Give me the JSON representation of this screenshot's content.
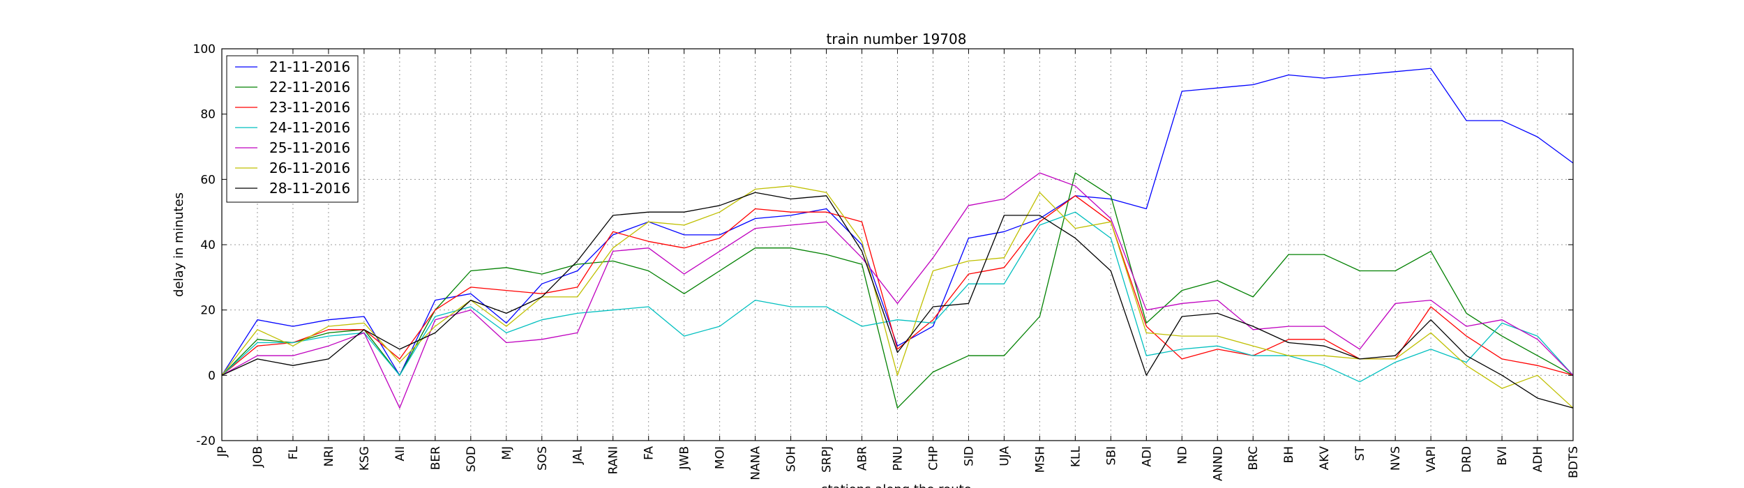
{
  "chart_data": {
    "type": "line",
    "title": "train number 19708",
    "xlabel": "stations along the route",
    "ylabel": "delay in minutes",
    "ylim": [
      -20,
      100
    ],
    "yticks": [
      -20,
      0,
      20,
      40,
      60,
      80,
      100
    ],
    "grid": true,
    "legend_position": "top-left",
    "categories": [
      "JP",
      "JOB",
      "FL",
      "NRI",
      "KSG",
      "AII",
      "BER",
      "SOD",
      "MJ",
      "SOS",
      "JAL",
      "RANI",
      "FA",
      "JWB",
      "MOI",
      "NANA",
      "SOH",
      "SRPJ",
      "ABR",
      "PNU",
      "CHP",
      "SID",
      "UJA",
      "MSH",
      "KLL",
      "SBI",
      "ADI",
      "ND",
      "ANND",
      "BRC",
      "BH",
      "AKV",
      "ST",
      "NVS",
      "VAPI",
      "DRD",
      "BVI",
      "ADH",
      "BDTS"
    ],
    "series": [
      {
        "name": "21-11-2016",
        "color": "#0000ff",
        "values": [
          0,
          17,
          15,
          17,
          18,
          0,
          23,
          25,
          16,
          28,
          32,
          43,
          47,
          43,
          43,
          48,
          49,
          51,
          40,
          9,
          15,
          42,
          44,
          48,
          55,
          54,
          51,
          87,
          88,
          89,
          92,
          91,
          92,
          93,
          94,
          78,
          78,
          73,
          65
        ]
      },
      {
        "name": "22-11-2016",
        "color": "#008000",
        "values": [
          0,
          11,
          10,
          13,
          14,
          0,
          20,
          32,
          33,
          31,
          34,
          35,
          32,
          25,
          32,
          39,
          39,
          37,
          34,
          -10,
          1,
          6,
          6,
          18,
          62,
          55,
          16,
          26,
          29,
          24,
          37,
          37,
          32,
          32,
          38,
          19,
          12,
          6,
          0
        ]
      },
      {
        "name": "23-11-2016",
        "color": "#ff0000",
        "values": [
          0,
          9,
          10,
          14,
          14,
          5,
          20,
          27,
          26,
          25,
          27,
          44,
          41,
          39,
          42,
          51,
          50,
          50,
          47,
          8,
          17,
          31,
          33,
          47,
          55,
          47,
          15,
          5,
          8,
          6,
          11,
          11,
          5,
          5,
          21,
          12,
          5,
          3,
          0
        ]
      },
      {
        "name": "24-11-2016",
        "color": "#00bfbf",
        "values": [
          0,
          10,
          10,
          12,
          13,
          0,
          18,
          21,
          13,
          17,
          19,
          20,
          21,
          12,
          15,
          23,
          21,
          21,
          15,
          17,
          16,
          28,
          28,
          46,
          50,
          42,
          6,
          8,
          9,
          6,
          6,
          3,
          -2,
          4,
          8,
          4,
          16,
          12,
          0
        ]
      },
      {
        "name": "25-11-2016",
        "color": "#bf00bf",
        "values": [
          0,
          6,
          6,
          9,
          13,
          -10,
          17,
          20,
          10,
          11,
          13,
          38,
          39,
          31,
          38,
          45,
          46,
          47,
          36,
          22,
          36,
          52,
          54,
          62,
          58,
          48,
          20,
          22,
          23,
          14,
          15,
          15,
          8,
          22,
          23,
          15,
          17,
          11,
          0
        ]
      },
      {
        "name": "26-11-2016",
        "color": "#bfbf00",
        "values": [
          0,
          14,
          9,
          15,
          16,
          4,
          15,
          23,
          15,
          24,
          24,
          39,
          47,
          46,
          50,
          57,
          58,
          56,
          41,
          0,
          32,
          35,
          36,
          56,
          45,
          47,
          13,
          12,
          12,
          9,
          6,
          6,
          5,
          5,
          13,
          3,
          -4,
          0,
          -10
        ]
      },
      {
        "name": "28-11-2016",
        "color": "#000000",
        "values": [
          0,
          5,
          3,
          5,
          14,
          8,
          13,
          23,
          19,
          24,
          35,
          49,
          50,
          50,
          52,
          56,
          54,
          55,
          38,
          7,
          21,
          22,
          49,
          49,
          42,
          32,
          0,
          18,
          19,
          15,
          10,
          9,
          5,
          6,
          17,
          6,
          0,
          -7,
          -10
        ]
      }
    ]
  }
}
